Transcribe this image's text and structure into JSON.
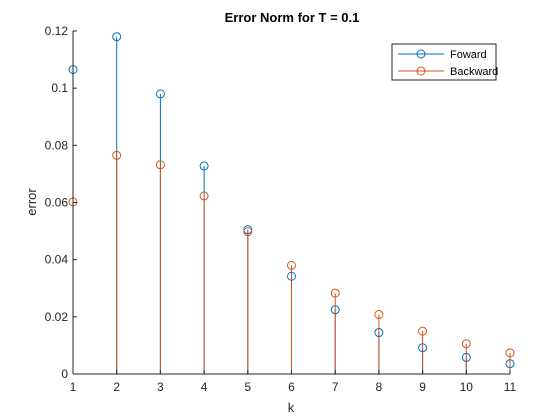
{
  "chart_data": {
    "type": "stem",
    "title": "Error Norm for T = 0.1",
    "xlabel": "k",
    "ylabel": "error",
    "xlim": [
      1,
      11
    ],
    "ylim": [
      0,
      0.12
    ],
    "x": [
      1,
      2,
      3,
      4,
      5,
      6,
      7,
      8,
      9,
      10,
      11
    ],
    "x_ticks": [
      "1",
      "2",
      "3",
      "4",
      "5",
      "6",
      "7",
      "8",
      "9",
      "10",
      "11"
    ],
    "y_ticks": [
      "0",
      "0.02",
      "0.04",
      "0.06",
      "0.08",
      "0.1",
      "0.12"
    ],
    "y_tick_values": [
      0,
      0.02,
      0.04,
      0.06,
      0.08,
      0.1,
      0.12
    ],
    "grid": false,
    "legend_position": "top-right",
    "series": [
      {
        "name": "Foward",
        "color": "#0072BD",
        "marker": "circle",
        "values": [
          0.1065,
          0.118,
          0.098,
          0.0728,
          0.0505,
          0.0342,
          0.0225,
          0.0145,
          0.0092,
          0.0058,
          0.0036
        ]
      },
      {
        "name": "Backward",
        "color": "#D95319",
        "marker": "circle",
        "values": [
          0.0602,
          0.0765,
          0.0732,
          0.0623,
          0.0498,
          0.038,
          0.0283,
          0.0208,
          0.015,
          0.0106,
          0.0074
        ]
      }
    ]
  }
}
